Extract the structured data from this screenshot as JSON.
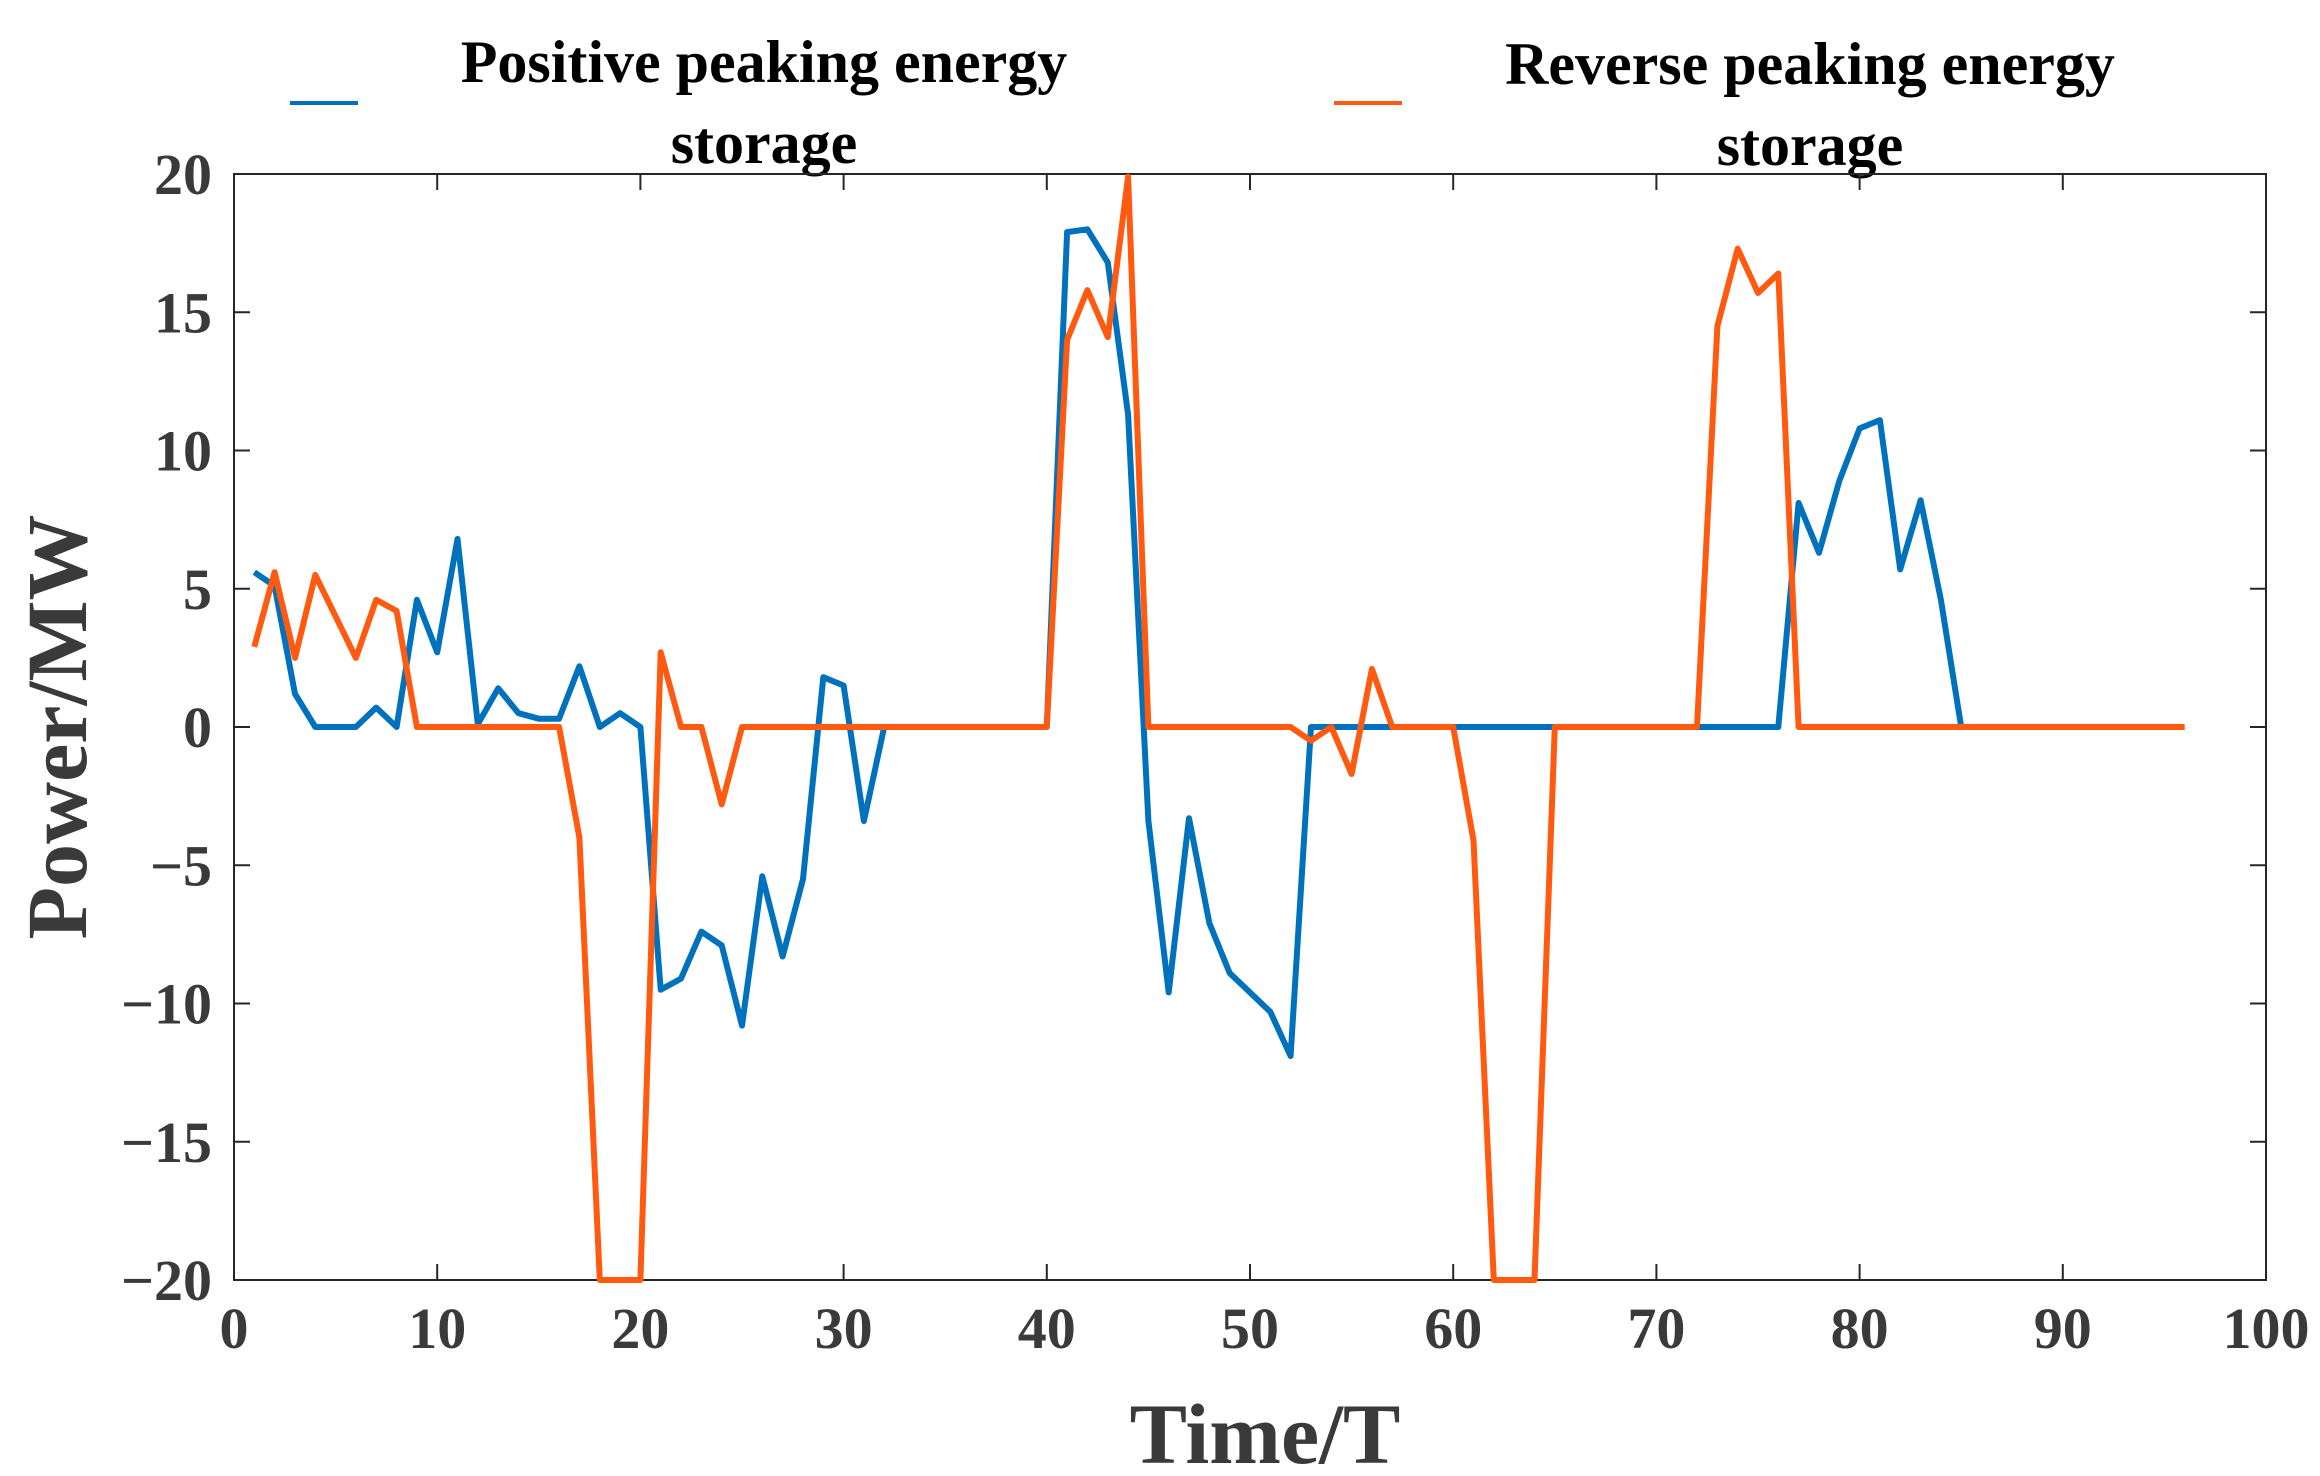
{
  "chart_data": {
    "type": "line",
    "title": "",
    "xlabel": "Time/T",
    "ylabel": "Power/MW",
    "xlim": [
      0,
      100
    ],
    "ylim": [
      -20,
      20
    ],
    "xticks": [
      0,
      10,
      20,
      30,
      40,
      50,
      60,
      70,
      80,
      90,
      100
    ],
    "yticks": [
      20,
      15,
      10,
      5,
      0,
      -5,
      -10,
      -15,
      -20
    ],
    "xtick_labels": [
      "0",
      "10",
      "20",
      "30",
      "40",
      "50",
      "60",
      "70",
      "80",
      "90",
      "100"
    ],
    "ytick_labels": [
      "20",
      "15",
      "10",
      "5",
      "0",
      "−5",
      "−10",
      "−15",
      "−20"
    ],
    "grid": false,
    "legend_position": "top",
    "series": [
      {
        "name": "Positive peaking energy storage",
        "legend_lines": [
          "Positive peaking energy",
          "storage"
        ],
        "color": "#0072BD",
        "x": [
          1,
          2,
          3,
          4,
          5,
          6,
          7,
          8,
          9,
          10,
          11,
          12,
          13,
          14,
          15,
          16,
          17,
          18,
          19,
          20,
          21,
          22,
          23,
          24,
          25,
          26,
          27,
          28,
          29,
          30,
          31,
          32,
          33,
          34,
          35,
          36,
          37,
          38,
          39,
          40,
          41,
          42,
          43,
          44,
          45,
          46,
          47,
          48,
          49,
          50,
          51,
          52,
          53,
          54,
          55,
          56,
          57,
          58,
          59,
          60,
          61,
          62,
          63,
          64,
          65,
          66,
          67,
          68,
          69,
          70,
          71,
          72,
          73,
          74,
          75,
          76,
          77,
          78,
          79,
          80,
          81,
          82,
          83,
          84,
          85
        ],
        "y": [
          5.6,
          5.1,
          1.2,
          0,
          0,
          0,
          0.7,
          0,
          4.6,
          2.7,
          6.8,
          0.1,
          1.4,
          0.5,
          0.3,
          0.3,
          2.2,
          0,
          0.5,
          0,
          -9.5,
          -9.1,
          -7.4,
          -7.9,
          -10.8,
          -5.4,
          -8.3,
          -5.5,
          1.8,
          1.5,
          -3.4,
          0,
          0,
          0,
          0,
          0,
          0,
          0,
          0,
          0,
          17.9,
          18.0,
          16.8,
          11.3,
          -3.4,
          -9.6,
          -3.3,
          -7.1,
          -8.9,
          -9.6,
          -10.3,
          -11.9,
          0,
          0,
          0,
          0,
          0,
          0,
          0,
          0,
          0,
          0,
          0,
          0,
          0,
          0,
          0,
          0,
          0,
          0,
          0,
          0,
          0,
          0,
          0,
          0,
          8.1,
          6.3,
          8.9,
          10.8,
          11.1,
          5.7,
          8.2,
          4.6,
          0
        ]
      },
      {
        "name": "Reverse peaking energy storage",
        "legend_lines": [
          "Reverse peaking energy",
          "storage"
        ],
        "color": "#FF5A0F",
        "x": [
          1,
          2,
          3,
          4,
          5,
          6,
          7,
          8,
          9,
          10,
          11,
          12,
          13,
          14,
          15,
          16,
          17,
          18,
          19,
          20,
          21,
          22,
          23,
          24,
          25,
          26,
          27,
          28,
          29,
          30,
          31,
          32,
          33,
          34,
          35,
          36,
          37,
          38,
          39,
          40,
          41,
          42,
          43,
          44,
          45,
          46,
          47,
          48,
          49,
          50,
          51,
          52,
          53,
          54,
          55,
          56,
          57,
          58,
          59,
          60,
          61,
          62,
          63,
          64,
          65,
          66,
          67,
          68,
          69,
          70,
          71,
          72,
          73,
          74,
          75,
          76,
          77,
          78,
          79,
          80,
          81,
          82,
          83,
          84,
          85,
          86,
          87,
          88,
          89,
          90,
          91,
          92,
          93,
          94,
          95,
          96
        ],
        "y": [
          2.9,
          5.6,
          2.5,
          5.5,
          4.0,
          2.5,
          4.6,
          4.2,
          0,
          0,
          0,
          0,
          0,
          0,
          0,
          0,
          -4.0,
          -20,
          -20,
          -20,
          2.7,
          0,
          0,
          -2.8,
          0,
          0,
          0,
          0,
          0,
          0,
          0,
          0,
          0,
          0,
          0,
          0,
          0,
          0,
          0,
          0,
          14.0,
          15.8,
          14.1,
          19.9,
          0,
          0,
          0,
          0,
          0,
          0,
          0,
          0,
          -0.5,
          0,
          -1.7,
          2.1,
          0,
          0,
          0,
          0,
          -4.1,
          -20,
          -20,
          -20,
          0,
          0,
          0,
          0,
          0,
          0,
          0,
          0,
          14.5,
          17.3,
          15.7,
          16.4,
          0,
          0,
          0,
          0,
          0,
          0,
          0,
          0,
          0,
          0,
          0,
          0,
          0,
          0,
          0,
          0,
          0,
          0,
          0,
          0
        ]
      }
    ]
  }
}
